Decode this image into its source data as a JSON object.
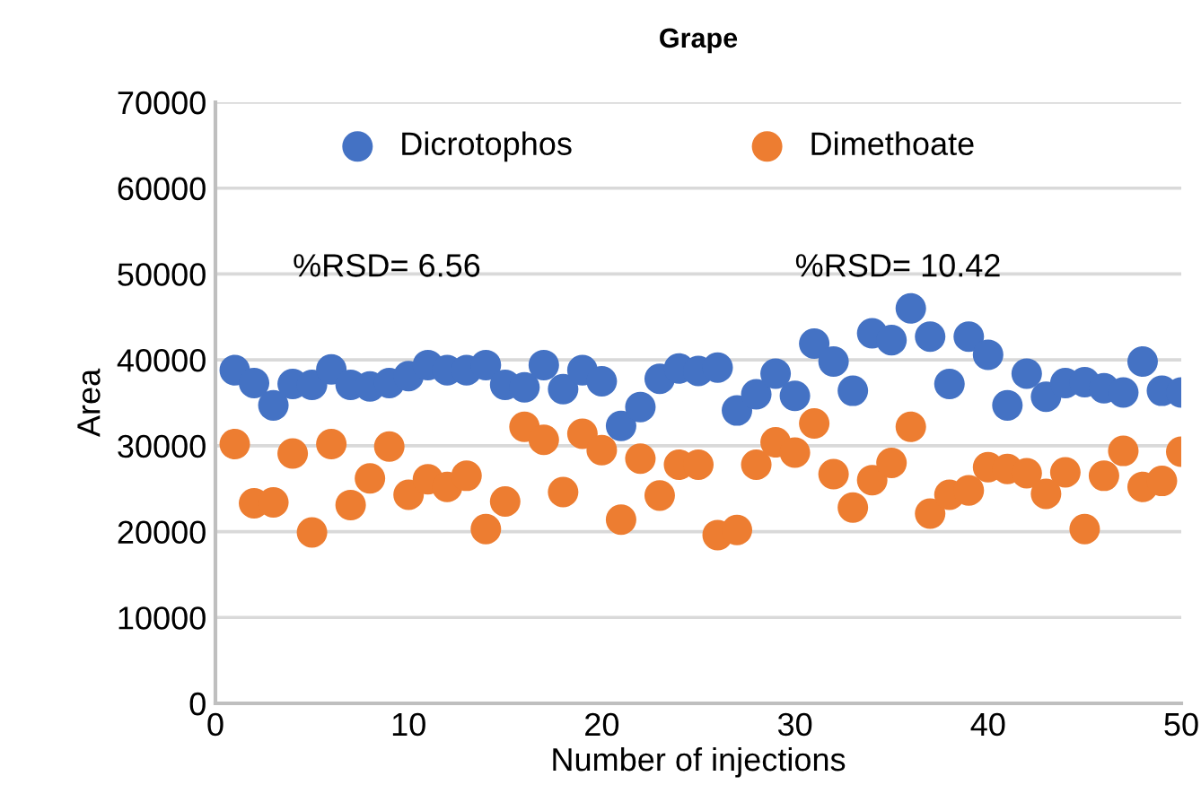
{
  "chart_data": {
    "type": "scatter",
    "title": "Grape",
    "xlabel": "Number of injections",
    "ylabel": "Area",
    "x": [
      1,
      2,
      3,
      4,
      5,
      6,
      7,
      8,
      9,
      10,
      11,
      12,
      13,
      14,
      15,
      16,
      17,
      18,
      19,
      20,
      21,
      22,
      23,
      24,
      25,
      26,
      27,
      28,
      29,
      30,
      31,
      32,
      33,
      34,
      35,
      36,
      37,
      38,
      39,
      40,
      41,
      42,
      43,
      44,
      45,
      46,
      47,
      48,
      49,
      50
    ],
    "series": [
      {
        "name": "Dicrotophos",
        "color": "#4472c4",
        "values": [
          38800,
          37300,
          34700,
          37200,
          37100,
          38900,
          37100,
          36900,
          37300,
          38100,
          39400,
          38800,
          38800,
          39400,
          37100,
          36800,
          39400,
          36600,
          38800,
          37500,
          32300,
          34500,
          37800,
          39000,
          38700,
          39100,
          34100,
          36000,
          38400,
          35800,
          41900,
          39800,
          36400,
          43100,
          42300,
          46000,
          42700,
          37200,
          42700,
          40600,
          34700,
          38400,
          35700,
          37300,
          37400,
          36700,
          36200,
          39800,
          36400,
          36200
        ]
      },
      {
        "name": "Dimethoate",
        "color": "#ed7d31",
        "values": [
          30200,
          23300,
          23400,
          29100,
          19900,
          30200,
          23100,
          26200,
          29900,
          24300,
          26100,
          25200,
          26500,
          20300,
          23500,
          32200,
          30700,
          24600,
          31400,
          29500,
          21400,
          28500,
          24200,
          27800,
          27800,
          19600,
          20200,
          27800,
          30400,
          29200,
          32600,
          26700,
          22800,
          26000,
          28000,
          32200,
          22100,
          24300,
          24800,
          27500,
          27300,
          26800,
          24400,
          26900,
          20300,
          26500,
          29400,
          25200,
          25900,
          29300
        ]
      }
    ],
    "annotations": [
      "%RSD= 6.56",
      "%RSD= 10.42"
    ],
    "xlim": [
      0,
      50
    ],
    "xticks": [
      0,
      10,
      20,
      30,
      40,
      50
    ],
    "ylim": [
      0,
      70000
    ],
    "yticks": [
      0,
      10000,
      20000,
      30000,
      40000,
      50000,
      60000,
      70000
    ],
    "grid": "y",
    "legend": "top",
    "marker": "circle"
  }
}
